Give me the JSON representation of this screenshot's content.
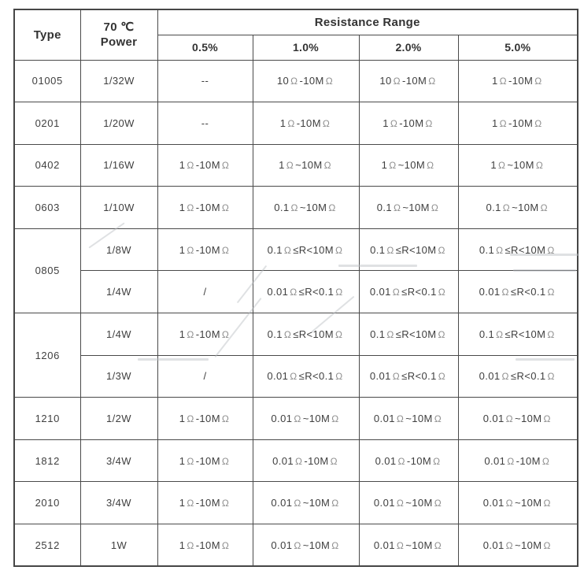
{
  "table": {
    "header": {
      "type_label": "Type",
      "power_label_line1": "70 ℃",
      "power_label_line2": "Power",
      "resistance_range_label": "Resistance Range",
      "tolerances": [
        "0.5%",
        "1.0%",
        "2.0%",
        "5.0%"
      ]
    },
    "rows": [
      {
        "type": "01005",
        "rowspan": 1,
        "power": "1/32W",
        "cells": [
          "--",
          "10Ω-10MΩ",
          "10Ω-10MΩ",
          "1Ω-10MΩ"
        ]
      },
      {
        "type": "0201",
        "rowspan": 1,
        "power": "1/20W",
        "cells": [
          "--",
          "1Ω-10MΩ",
          "1Ω-10MΩ",
          "1Ω-10MΩ"
        ]
      },
      {
        "type": "0402",
        "rowspan": 1,
        "power": "1/16W",
        "cells": [
          "1Ω-10MΩ",
          "1Ω~10MΩ",
          "1Ω~10MΩ",
          "1Ω~10MΩ"
        ]
      },
      {
        "type": "0603",
        "rowspan": 1,
        "power": "1/10W",
        "cells": [
          "1Ω-10MΩ",
          "0.1Ω~10MΩ",
          "0.1Ω~10MΩ",
          "0.1Ω~10MΩ"
        ]
      },
      {
        "type": "0805",
        "rowspan": 2,
        "power": "1/8W",
        "cells": [
          "1Ω-10MΩ",
          "0.1Ω≤R<10MΩ",
          "0.1Ω≤R<10MΩ",
          "0.1Ω≤R<10MΩ"
        ]
      },
      {
        "power": "1/4W",
        "cells": [
          "/",
          "0.01Ω≤R<0.1Ω",
          "0.01Ω≤R<0.1Ω",
          "0.01Ω≤R<0.1Ω"
        ]
      },
      {
        "type": "1206",
        "rowspan": 2,
        "power": "1/4W",
        "cells": [
          "1Ω-10MΩ",
          "0.1Ω≤R<10MΩ",
          "0.1Ω≤R<10MΩ",
          "0.1Ω≤R<10MΩ"
        ]
      },
      {
        "power": "1/3W",
        "cells": [
          "/",
          "0.01Ω≤R<0.1Ω",
          "0.01Ω≤R<0.1Ω",
          "0.01Ω≤R<0.1Ω"
        ]
      },
      {
        "type": "1210",
        "rowspan": 1,
        "power": "1/2W",
        "cells": [
          "1Ω-10MΩ",
          "0.01Ω~10MΩ",
          "0.01Ω~10MΩ",
          "0.01Ω~10MΩ"
        ]
      },
      {
        "type": "1812",
        "rowspan": 1,
        "power": "3/4W",
        "cells": [
          "1Ω-10MΩ",
          "0.01Ω-10MΩ",
          "0.01Ω-10MΩ",
          "0.01Ω-10MΩ"
        ]
      },
      {
        "type": "2010",
        "rowspan": 1,
        "power": "3/4W",
        "cells": [
          "1Ω-10MΩ",
          "0.01Ω~10MΩ",
          "0.01Ω~10MΩ",
          "0.01Ω~10MΩ"
        ]
      },
      {
        "type": "2512",
        "rowspan": 1,
        "power": "1W",
        "cells": [
          "1Ω-10MΩ",
          "0.01Ω~10MΩ",
          "0.01Ω~10MΩ",
          "0.01Ω~10MΩ"
        ]
      }
    ]
  },
  "colors": {
    "border": "#4a4a4a",
    "text": "#3f3f3f",
    "ohm_symbol": "#8f8f8f",
    "background": "#ffffff"
  }
}
